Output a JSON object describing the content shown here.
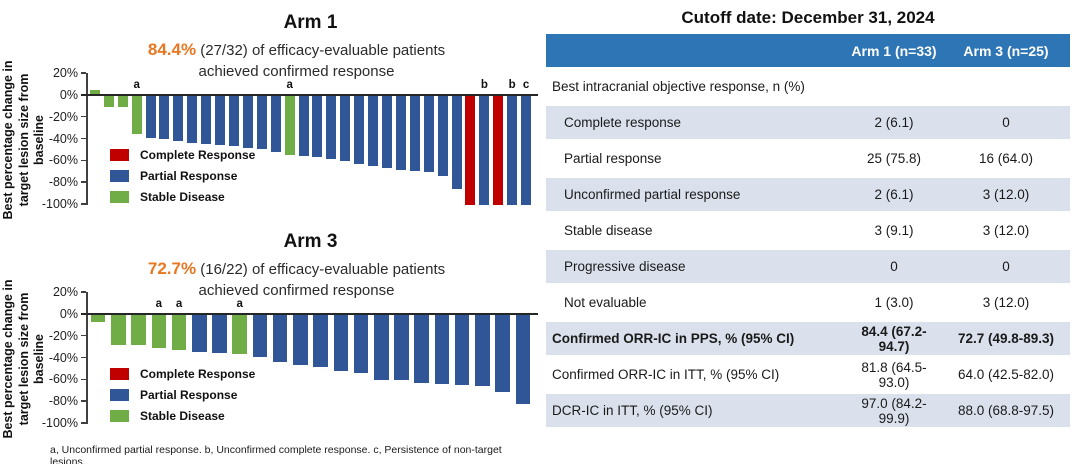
{
  "colors": {
    "highlight_orange": "#e87722",
    "table_header_blue": "#2e75b6",
    "row_shade": "#dbe1ec",
    "bar_red": "#c00000",
    "bar_blue": "#305698",
    "bar_green": "#70ad47"
  },
  "footnote": "a, Unconfirmed partial response. b, Unconfirmed complete response. c, Persistence of non-target lesions.",
  "chart_data": [
    {
      "type": "bar",
      "chart_kind": "waterfall",
      "title": "Arm 1",
      "subtitle_highlight": "84.4%",
      "subtitle_line1": "(27/32) of efficacy-evaluable patients",
      "subtitle_line2": "achieved confirmed response",
      "ylabel": "Best percentage change in target lesion size from baseline",
      "ylim": [
        -100,
        20
      ],
      "yticks": [
        {
          "v": 20,
          "label": "20%"
        },
        {
          "v": 0,
          "label": "0%"
        },
        {
          "v": -20,
          "label": "-20%"
        },
        {
          "v": -40,
          "label": "-40%"
        },
        {
          "v": -60,
          "label": "-60%"
        },
        {
          "v": -80,
          "label": "-80%"
        },
        {
          "v": -100,
          "label": "-100%"
        }
      ],
      "legend": [
        {
          "key": "CR",
          "label": "Complete Response",
          "color": "#c00000"
        },
        {
          "key": "PR",
          "label": "Partial Response",
          "color": "#305698"
        },
        {
          "key": "SD",
          "label": "Stable Disease",
          "color": "#70ad47"
        }
      ],
      "bars": [
        {
          "v": 4,
          "c": "SD"
        },
        {
          "v": -10,
          "c": "SD"
        },
        {
          "v": -10,
          "c": "SD"
        },
        {
          "v": -35,
          "c": "SD",
          "a": "a"
        },
        {
          "v": -39,
          "c": "PR"
        },
        {
          "v": -40,
          "c": "PR"
        },
        {
          "v": -41,
          "c": "PR"
        },
        {
          "v": -43,
          "c": "PR"
        },
        {
          "v": -44,
          "c": "PR"
        },
        {
          "v": -45,
          "c": "PR"
        },
        {
          "v": -46,
          "c": "PR"
        },
        {
          "v": -48,
          "c": "PR"
        },
        {
          "v": -49,
          "c": "PR"
        },
        {
          "v": -51,
          "c": "PR"
        },
        {
          "v": -54,
          "c": "SD",
          "a": "a"
        },
        {
          "v": -55,
          "c": "PR"
        },
        {
          "v": -56,
          "c": "PR"
        },
        {
          "v": -58,
          "c": "PR"
        },
        {
          "v": -60,
          "c": "PR"
        },
        {
          "v": -62,
          "c": "PR"
        },
        {
          "v": -64,
          "c": "PR"
        },
        {
          "v": -66,
          "c": "PR"
        },
        {
          "v": -68,
          "c": "PR"
        },
        {
          "v": -69,
          "c": "PR"
        },
        {
          "v": -70,
          "c": "PR"
        },
        {
          "v": -73,
          "c": "PR"
        },
        {
          "v": -85,
          "c": "PR"
        },
        {
          "v": -100,
          "c": "CR"
        },
        {
          "v": -100,
          "c": "PR",
          "a": "b"
        },
        {
          "v": -100,
          "c": "CR"
        },
        {
          "v": -100,
          "c": "PR",
          "a": "b"
        },
        {
          "v": -100,
          "c": "PR",
          "a": "c"
        }
      ]
    },
    {
      "type": "bar",
      "chart_kind": "waterfall",
      "title": "Arm 3",
      "subtitle_highlight": "72.7%",
      "subtitle_line1": "(16/22) of efficacy-evaluable patients",
      "subtitle_line2": "achieved confirmed response",
      "ylabel": "Best percentage change in target lesion size from baseline",
      "ylim": [
        -100,
        20
      ],
      "yticks": [
        {
          "v": 20,
          "label": "20%"
        },
        {
          "v": 0,
          "label": "0%"
        },
        {
          "v": -20,
          "label": "-20%"
        },
        {
          "v": -40,
          "label": "-40%"
        },
        {
          "v": -60,
          "label": "-60%"
        },
        {
          "v": -80,
          "label": "-80%"
        },
        {
          "v": -100,
          "label": "-100%"
        }
      ],
      "legend": [
        {
          "key": "CR",
          "label": "Complete Response",
          "color": "#c00000"
        },
        {
          "key": "PR",
          "label": "Partial Response",
          "color": "#305698"
        },
        {
          "key": "SD",
          "label": "Stable Disease",
          "color": "#70ad47"
        }
      ],
      "bars": [
        {
          "v": -7,
          "c": "SD"
        },
        {
          "v": -28,
          "c": "SD"
        },
        {
          "v": -28,
          "c": "SD"
        },
        {
          "v": -30,
          "c": "SD",
          "a": "a"
        },
        {
          "v": -32,
          "c": "SD",
          "a": "a"
        },
        {
          "v": -34,
          "c": "PR"
        },
        {
          "v": -35,
          "c": "PR"
        },
        {
          "v": -36,
          "c": "SD",
          "a": "a"
        },
        {
          "v": -39,
          "c": "PR"
        },
        {
          "v": -43,
          "c": "PR"
        },
        {
          "v": -46,
          "c": "PR"
        },
        {
          "v": -48,
          "c": "PR"
        },
        {
          "v": -51,
          "c": "PR"
        },
        {
          "v": -53,
          "c": "PR"
        },
        {
          "v": -60,
          "c": "PR"
        },
        {
          "v": -60,
          "c": "PR"
        },
        {
          "v": -62,
          "c": "PR"
        },
        {
          "v": -63,
          "c": "PR"
        },
        {
          "v": -64,
          "c": "PR"
        },
        {
          "v": -65,
          "c": "PR"
        },
        {
          "v": -71,
          "c": "PR"
        },
        {
          "v": -82,
          "c": "PR"
        }
      ]
    }
  ],
  "table": {
    "title": "Cutoff date: December 31, 2024",
    "columns": [
      "",
      "Arm 1 (n=33)",
      "Arm 3 (n=25)"
    ],
    "rows": [
      {
        "label": "Best intracranial objective response, n (%)",
        "arm1": "",
        "arm3": "",
        "shaded": false,
        "bold": false,
        "indent": false
      },
      {
        "label": "Complete response",
        "arm1": "2 (6.1)",
        "arm3": "0",
        "shaded": true,
        "bold": false,
        "indent": true
      },
      {
        "label": "Partial response",
        "arm1": "25 (75.8)",
        "arm3": "16 (64.0)",
        "shaded": false,
        "bold": false,
        "indent": true
      },
      {
        "label": "Unconfirmed partial response",
        "arm1": "2 (6.1)",
        "arm3": "3 (12.0)",
        "shaded": true,
        "bold": false,
        "indent": true
      },
      {
        "label": "Stable disease",
        "arm1": "3 (9.1)",
        "arm3": "3 (12.0)",
        "shaded": false,
        "bold": false,
        "indent": true
      },
      {
        "label": "Progressive disease",
        "arm1": "0",
        "arm3": "0",
        "shaded": true,
        "bold": false,
        "indent": true
      },
      {
        "label": "Not evaluable",
        "arm1": "1 (3.0)",
        "arm3": "3 (12.0)",
        "shaded": false,
        "bold": false,
        "indent": true
      },
      {
        "label": "Confirmed ORR-IC in PPS, % (95% CI)",
        "arm1": "84.4 (67.2-94.7)",
        "arm3": "72.7 (49.8-89.3)",
        "shaded": true,
        "bold": true,
        "indent": false
      },
      {
        "label": "Confirmed ORR-IC in ITT, % (95% CI)",
        "arm1": "81.8 (64.5-93.0)",
        "arm3": "64.0 (42.5-82.0)",
        "shaded": false,
        "bold": false,
        "indent": false
      },
      {
        "label": "DCR-IC in ITT, % (95% CI)",
        "arm1": "97.0 (84.2-99.9)",
        "arm3": "88.0 (68.8-97.5)",
        "shaded": true,
        "bold": false,
        "indent": false
      }
    ]
  }
}
